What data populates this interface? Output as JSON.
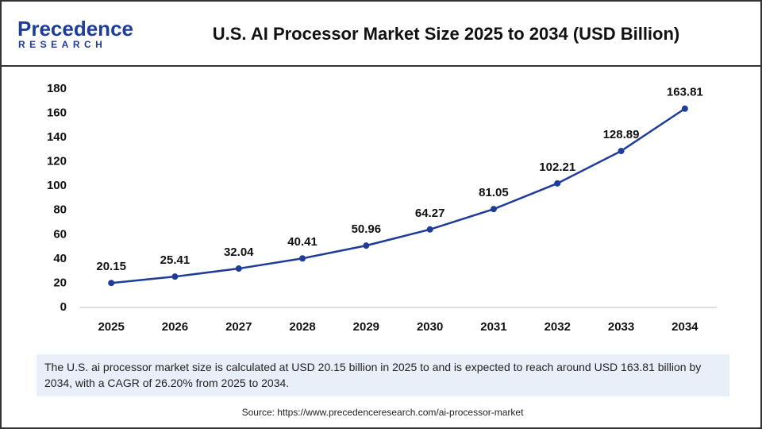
{
  "logo": {
    "name": "Precedence",
    "subtitle": "RESEARCH"
  },
  "chart_data": {
    "type": "line",
    "title": "U.S. AI Processor Market Size 2025 to 2034 (USD Billion)",
    "categories": [
      "2025",
      "2026",
      "2027",
      "2028",
      "2029",
      "2030",
      "2031",
      "2032",
      "2033",
      "2034"
    ],
    "values": [
      20.15,
      25.41,
      32.04,
      40.41,
      50.96,
      64.27,
      81.05,
      102.21,
      128.89,
      163.81
    ],
    "color": "#1f3c98",
    "ylim": [
      0,
      180
    ],
    "yticks": [
      0,
      20,
      40,
      60,
      80,
      100,
      120,
      140,
      160,
      180
    ],
    "grid": false
  },
  "description": "The U.S. ai processor market size is calculated at USD 20.15 billion in 2025 to and is expected to reach around USD 163.81 billion by 2034, with a CAGR of 26.20% from 2025 to 2034.",
  "source": "Source: https://www.precedenceresearch.com/ai-processor-market"
}
